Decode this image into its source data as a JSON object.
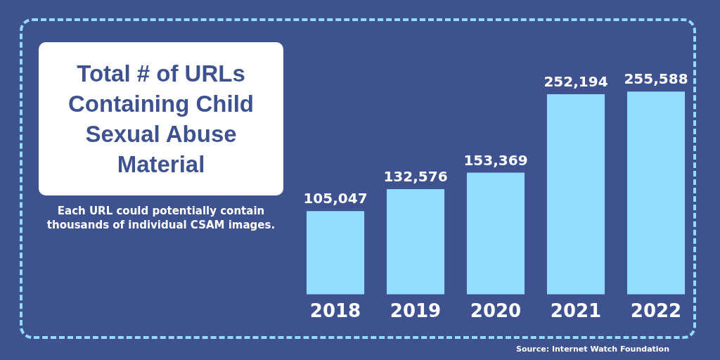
{
  "chart_data": {
    "type": "bar",
    "title": "Total # of URLs Containing Child Sexual Abuse Material",
    "subtitle": "Each URL could potentially contain thousands of individual CSAM images.",
    "categories": [
      "2018",
      "2019",
      "2020",
      "2021",
      "2022"
    ],
    "values": [
      105047,
      132576,
      153369,
      252194,
      255588
    ],
    "value_labels": [
      "105,047",
      "132,576",
      "153,369",
      "252,194",
      "255,588"
    ],
    "color": "#92ddff",
    "annotations": [
      "Source: Internet Watch Foundation"
    ]
  }
}
